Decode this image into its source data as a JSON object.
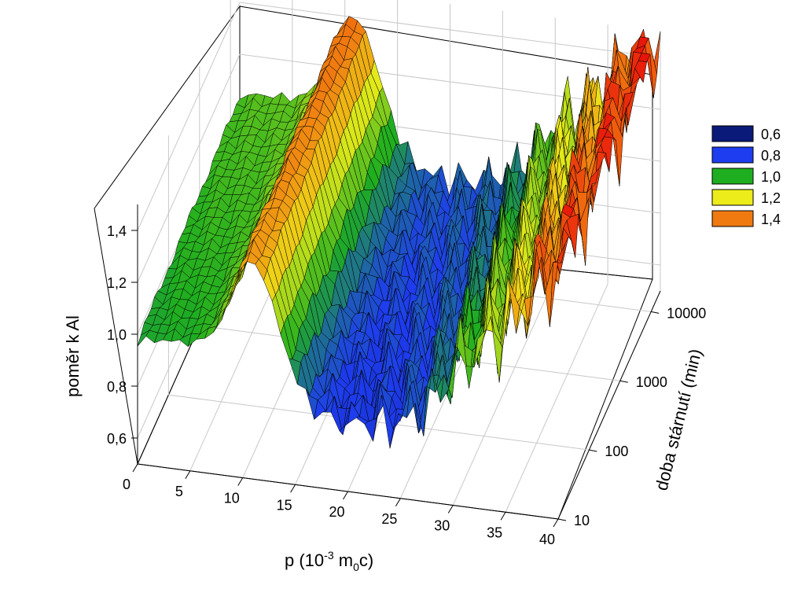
{
  "chart_data": {
    "type": "surface",
    "x_axis": {
      "ticks": [
        "0",
        "5",
        "10",
        "15",
        "20",
        "25",
        "30",
        "35",
        "40"
      ],
      "range": [
        0,
        40
      ],
      "label_parts": [
        "p (10",
        "-3",
        " m",
        "0",
        "c)"
      ]
    },
    "y_axis": {
      "ticks": [
        "10",
        "100",
        "1000",
        "10000"
      ],
      "scale": "log",
      "range": [
        10,
        20000
      ],
      "label": "doba stárnutí (min)"
    },
    "z_axis": {
      "ticks": [
        "0,6",
        "0,8",
        "1,0",
        "1,2",
        "1,4"
      ],
      "range": [
        0.5,
        1.5
      ],
      "label": "poměr k Al"
    },
    "grid": true,
    "legend": {
      "placement": "right",
      "entries": [
        {
          "label": "0,6",
          "color": "#0a1a78"
        },
        {
          "label": "0,8",
          "color": "#1e3cf0"
        },
        {
          "label": "1,0",
          "color": "#1fae1f"
        },
        {
          "label": "1,2",
          "color": "#ecec1a"
        },
        {
          "label": "1,4",
          "color": "#f07a10"
        }
      ]
    },
    "surface_profile": {
      "p": [
        0,
        2,
        4,
        6,
        8,
        10,
        12,
        14,
        16,
        18,
        20,
        22,
        24,
        26,
        28,
        30,
        32,
        34,
        36,
        38,
        40
      ],
      "ratio": [
        1.0,
        1.02,
        1.02,
        1.03,
        1.12,
        1.38,
        1.32,
        1.05,
        0.86,
        0.8,
        0.79,
        0.8,
        0.81,
        0.85,
        0.92,
        1.05,
        1.12,
        1.2,
        1.3,
        1.45,
        1.5
      ]
    }
  }
}
